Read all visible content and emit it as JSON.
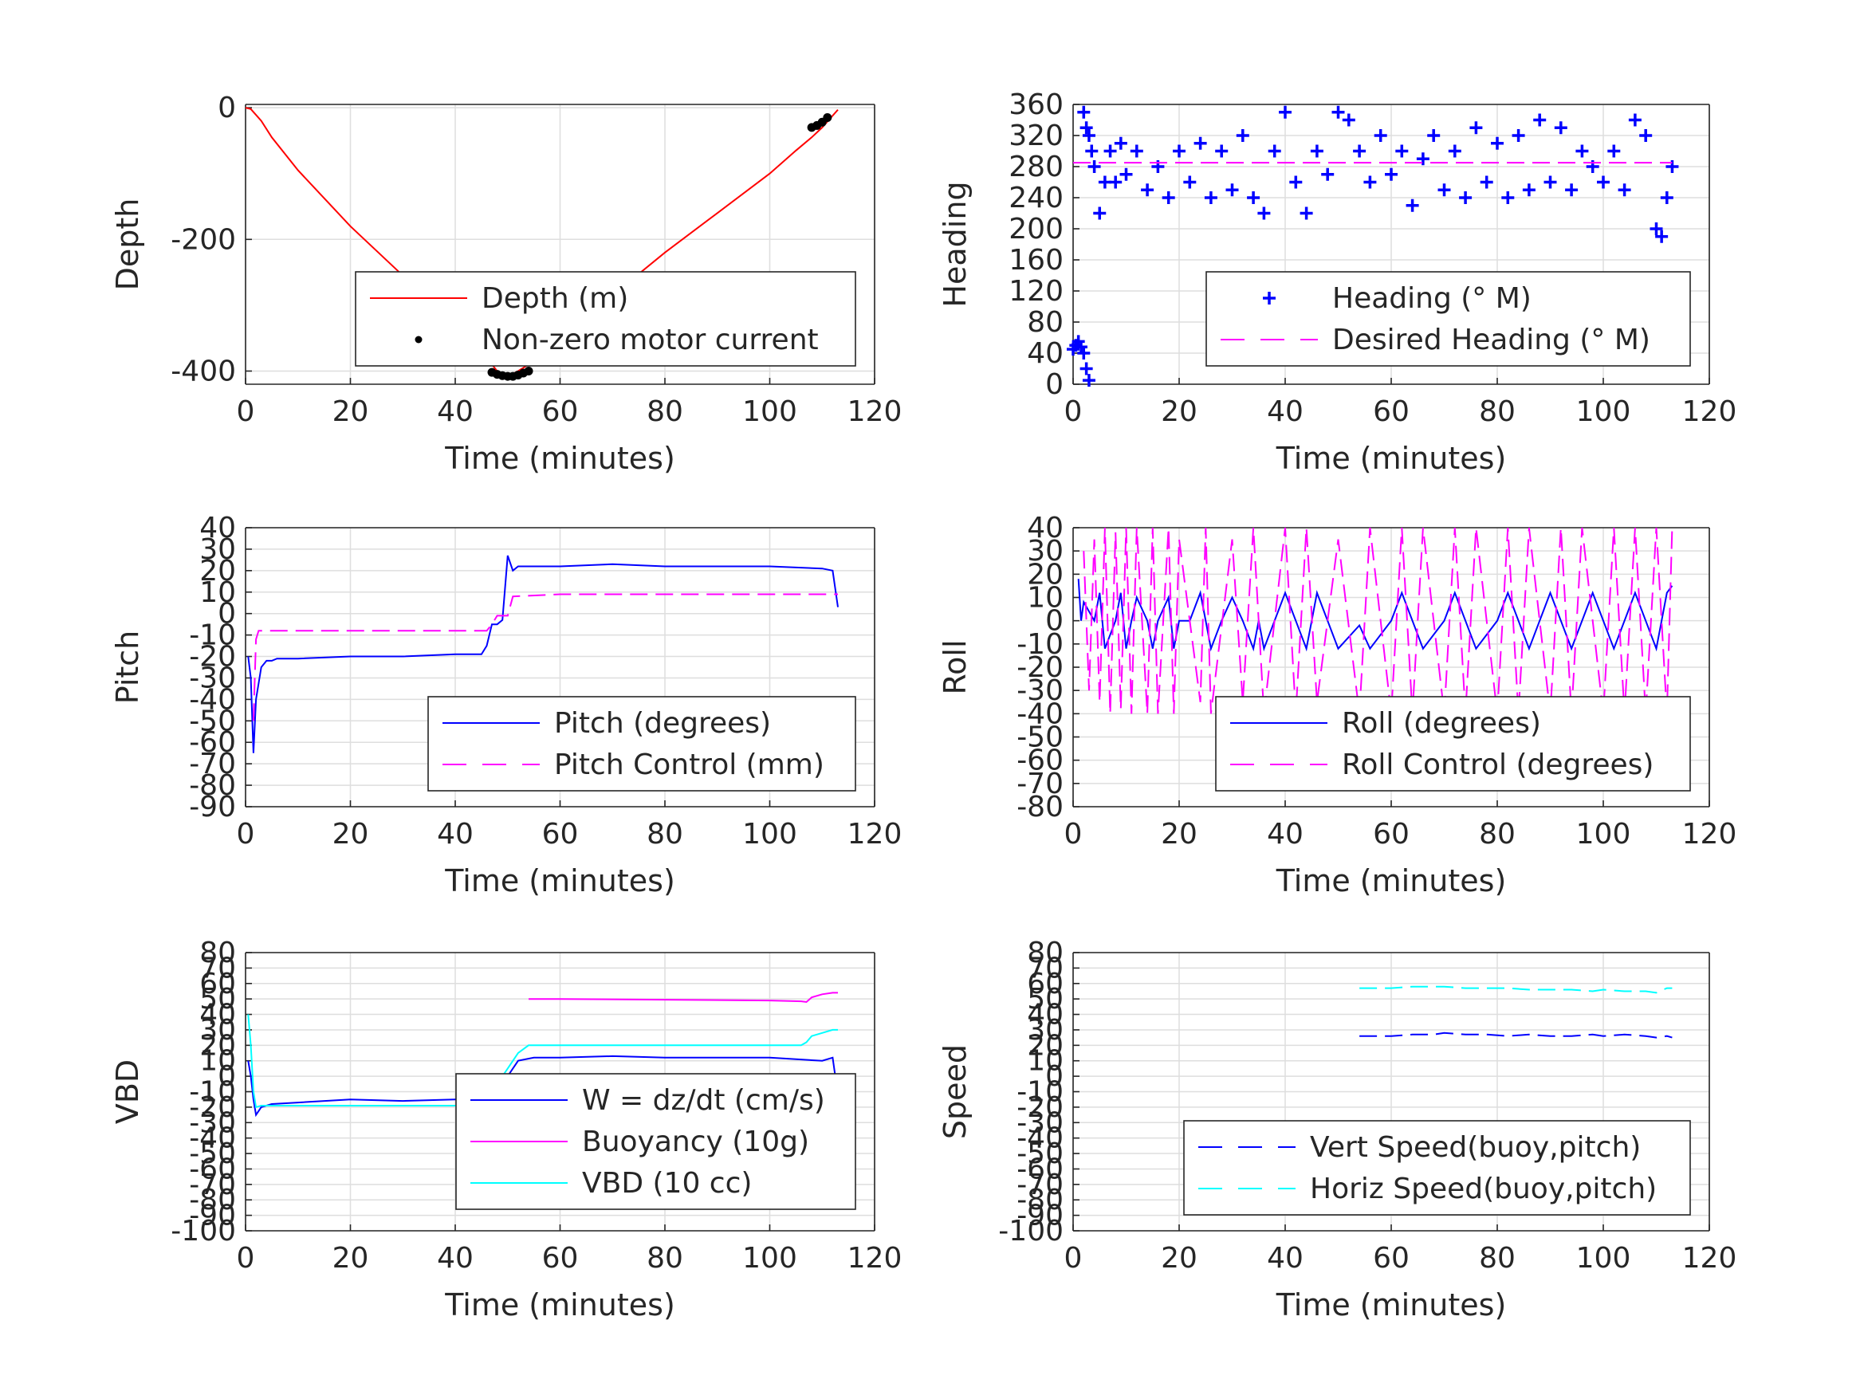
{
  "chart_data": [
    {
      "type": "line",
      "xlabel": "Time (minutes)",
      "ylabel": "Depth",
      "xlim": [
        0,
        120
      ],
      "ylim": [
        -420,
        5
      ],
      "xticks": [
        "0",
        "20",
        "40",
        "60",
        "80",
        "100",
        "120"
      ],
      "yticks": [
        "-400",
        "-200",
        "0"
      ],
      "grid": true,
      "legend": "bottom-right",
      "series": [
        {
          "name": "Depth (m)",
          "style": "line",
          "color": "#ff0000",
          "x": [
            0,
            1,
            3,
            5,
            10,
            20,
            30,
            40,
            45,
            48,
            50,
            52,
            55,
            60,
            70,
            80,
            90,
            100,
            105,
            108,
            110,
            113
          ],
          "y": [
            0,
            -2,
            -20,
            -45,
            -95,
            -180,
            -255,
            -330,
            -370,
            -400,
            -408,
            -400,
            -385,
            -350,
            -285,
            -220,
            -160,
            -100,
            -65,
            -45,
            -30,
            -3
          ]
        },
        {
          "name": "Non-zero motor current",
          "style": "dots",
          "color": "#000000",
          "x": [
            47,
            48,
            49,
            50,
            51,
            52,
            53,
            54,
            108,
            109,
            110,
            111
          ],
          "y": [
            -402,
            -405,
            -407,
            -408,
            -408,
            -406,
            -403,
            -400,
            -30,
            -27,
            -22,
            -15
          ]
        }
      ]
    },
    {
      "type": "scatter",
      "xlabel": "Time (minutes)",
      "ylabel": "Heading",
      "xlim": [
        0,
        120
      ],
      "ylim": [
        0,
        360
      ],
      "xticks": [
        "0",
        "20",
        "40",
        "60",
        "80",
        "100",
        "120"
      ],
      "yticks": [
        "0",
        "40",
        "80",
        "120",
        "160",
        "200",
        "240",
        "280",
        "320",
        "360"
      ],
      "grid": true,
      "legend": "bottom-right",
      "series": [
        {
          "name": "Heading (° M)",
          "style": "plus",
          "color": "#0000ff",
          "x": [
            0,
            0.5,
            1,
            1.5,
            2,
            2.5,
            3,
            2,
            2.5,
            3,
            3.5,
            4,
            5,
            6,
            7,
            8,
            9,
            10,
            12,
            14,
            16,
            18,
            20,
            22,
            24,
            26,
            28,
            30,
            32,
            34,
            36,
            38,
            40,
            42,
            44,
            46,
            48,
            50,
            52,
            54,
            56,
            58,
            60,
            62,
            64,
            66,
            68,
            70,
            72,
            74,
            76,
            78,
            80,
            82,
            84,
            86,
            88,
            90,
            92,
            94,
            96,
            98,
            100,
            102,
            104,
            106,
            108,
            110,
            111,
            112,
            113
          ],
          "y": [
            45,
            50,
            55,
            48,
            40,
            20,
            5,
            350,
            330,
            320,
            300,
            280,
            220,
            260,
            300,
            260,
            310,
            270,
            300,
            250,
            280,
            240,
            300,
            260,
            310,
            240,
            300,
            250,
            320,
            240,
            220,
            300,
            350,
            260,
            220,
            300,
            270,
            350,
            340,
            300,
            260,
            320,
            270,
            300,
            230,
            290,
            320,
            250,
            300,
            240,
            330,
            260,
            310,
            240,
            320,
            250,
            340,
            260,
            330,
            250,
            300,
            280,
            260,
            300,
            250,
            340,
            320,
            200,
            190,
            240,
            280
          ]
        },
        {
          "name": "Desired Heading (° M)",
          "style": "dash",
          "color": "#ff00ff",
          "x": [
            0,
            113
          ],
          "y": [
            285,
            285
          ]
        }
      ]
    },
    {
      "type": "line",
      "xlabel": "Time (minutes)",
      "ylabel": "Pitch",
      "xlim": [
        0,
        120
      ],
      "ylim": [
        -90,
        40
      ],
      "xticks": [
        "0",
        "20",
        "40",
        "60",
        "80",
        "100",
        "120"
      ],
      "yticks": [
        "-90",
        "-80",
        "-70",
        "-60",
        "-50",
        "-40",
        "-30",
        "-20",
        "-10",
        "0",
        "10",
        "20",
        "30",
        "40"
      ],
      "grid": true,
      "legend": "bottom-right",
      "series": [
        {
          "name": "Pitch (degrees)",
          "style": "line",
          "color": "#0000ff",
          "x": [
            0.5,
            1,
            1.5,
            2,
            3,
            4,
            5,
            6,
            10,
            20,
            30,
            40,
            45,
            46,
            47,
            48,
            49,
            50,
            51,
            52,
            60,
            70,
            80,
            90,
            100,
            110,
            112,
            113
          ],
          "y": [
            -20,
            -30,
            -65,
            -40,
            -25,
            -22,
            -22,
            -21,
            -21,
            -20,
            -20,
            -19,
            -19,
            -15,
            -5,
            -5,
            -3,
            27,
            20,
            22,
            22,
            23,
            22,
            22,
            22,
            21,
            20,
            3
          ]
        },
        {
          "name": "Pitch Control (mm)",
          "style": "dash",
          "color": "#ff00ff",
          "x": [
            1.5,
            2,
            2.5,
            5,
            20,
            40,
            46,
            47,
            48,
            49,
            50,
            51,
            60,
            80,
            100,
            113
          ],
          "y": [
            -50,
            -12,
            -8,
            -8,
            -8,
            -8,
            -8,
            -5,
            -1,
            -1,
            -1,
            8,
            9,
            9,
            9,
            9
          ]
        }
      ]
    },
    {
      "type": "line",
      "xlabel": "Time (minutes)",
      "ylabel": "Roll",
      "xlim": [
        0,
        120
      ],
      "ylim": [
        -80,
        40
      ],
      "xticks": [
        "0",
        "20",
        "40",
        "60",
        "80",
        "100",
        "120"
      ],
      "yticks": [
        "-80",
        "-70",
        "-60",
        "-50",
        "-40",
        "-30",
        "-20",
        "-10",
        "0",
        "10",
        "20",
        "30",
        "40"
      ],
      "grid": true,
      "legend": "bottom-right",
      "series": [
        {
          "name": "Roll (degrees)",
          "style": "line",
          "color": "#0000ff",
          "x": [
            1,
            1.5,
            2,
            4,
            5,
            6,
            8,
            9,
            10,
            11,
            12,
            14,
            15,
            16,
            18,
            19,
            20,
            22,
            24,
            25,
            26,
            28,
            30,
            32,
            34,
            35,
            36,
            38,
            40,
            42,
            44,
            45,
            46,
            48,
            50,
            54,
            56,
            60,
            62,
            64,
            66,
            70,
            72,
            74,
            76,
            80,
            82,
            84,
            86,
            88,
            90,
            92,
            94,
            96,
            98,
            100,
            102,
            104,
            106,
            108,
            110,
            112,
            113
          ],
          "y": [
            18,
            0,
            8,
            0,
            12,
            -12,
            0,
            12,
            -12,
            0,
            10,
            0,
            -12,
            0,
            10,
            -12,
            0,
            0,
            12,
            0,
            -12,
            0,
            10,
            0,
            -12,
            0,
            -12,
            0,
            12,
            0,
            -12,
            0,
            12,
            0,
            -12,
            -2,
            -12,
            0,
            12,
            0,
            -12,
            0,
            12,
            0,
            -12,
            0,
            12,
            0,
            -12,
            0,
            12,
            0,
            -12,
            0,
            12,
            0,
            -12,
            0,
            12,
            0,
            -12,
            12,
            15
          ]
        },
        {
          "name": "Roll Control (degrees)",
          "style": "dash",
          "color": "#ff00ff",
          "x": [
            2,
            3,
            4,
            5,
            6,
            7,
            8,
            9,
            10,
            11,
            12,
            14,
            15,
            16,
            18,
            19,
            20,
            24,
            25,
            26,
            30,
            32,
            34,
            36,
            40,
            42,
            44,
            46,
            50,
            54,
            56,
            60,
            62,
            64,
            66,
            70,
            72,
            74,
            76,
            80,
            82,
            84,
            86,
            90,
            92,
            94,
            96,
            100,
            102,
            104,
            106,
            108,
            110,
            112,
            113
          ],
          "y": [
            30,
            -30,
            35,
            -35,
            40,
            -40,
            38,
            -38,
            40,
            -40,
            40,
            -40,
            40,
            -40,
            40,
            -40,
            35,
            -35,
            40,
            -40,
            35,
            -35,
            40,
            -40,
            40,
            -40,
            40,
            -35,
            35,
            -40,
            40,
            -40,
            40,
            -40,
            40,
            -40,
            40,
            -40,
            40,
            -40,
            40,
            -40,
            40,
            -40,
            40,
            -40,
            40,
            -40,
            40,
            -40,
            40,
            -40,
            40,
            -40,
            40
          ]
        }
      ]
    },
    {
      "type": "line",
      "xlabel": "Time (minutes)",
      "ylabel": "VBD",
      "xlim": [
        0,
        120
      ],
      "ylim": [
        -100,
        80
      ],
      "xticks": [
        "0",
        "20",
        "40",
        "60",
        "80",
        "100",
        "120"
      ],
      "yticks": [
        "-100",
        "-90",
        "-80",
        "-70",
        "-60",
        "-50",
        "-40",
        "-30",
        "-20",
        "-10",
        "0",
        "10",
        "20",
        "30",
        "40",
        "50",
        "60",
        "70",
        "80"
      ],
      "grid": true,
      "legend": "bottom-right",
      "series": [
        {
          "name": "W = dz/dt (cm/s)",
          "style": "line",
          "color": "#0000ff",
          "x": [
            0.5,
            1,
            1.5,
            2,
            3,
            5,
            10,
            20,
            30,
            40,
            46,
            47,
            48,
            50,
            52,
            55,
            60,
            70,
            80,
            90,
            100,
            105,
            110,
            112,
            112.5,
            113
          ],
          "y": [
            10,
            0,
            -15,
            -25,
            -20,
            -18,
            -17,
            -15,
            -16,
            -15,
            -15,
            -8,
            -5,
            0,
            10,
            12,
            12,
            13,
            12,
            12,
            12,
            11,
            10,
            12,
            0,
            -15
          ]
        },
        {
          "name": "Buoyancy (10g)",
          "style": "line",
          "color": "#ff00ff",
          "x": [
            54,
            60,
            80,
            100,
            106,
            107,
            108,
            110,
            112,
            113
          ],
          "y": [
            50,
            50,
            49.5,
            49,
            48.5,
            48,
            51,
            53,
            54,
            54
          ]
        },
        {
          "name": "VBD (10 cc)",
          "style": "line",
          "color": "#00ffff",
          "x": [
            0.5,
            1,
            1.5,
            2,
            3,
            5,
            10,
            20,
            30,
            40,
            46,
            47,
            48,
            50,
            52,
            54,
            60,
            80,
            100,
            106,
            107,
            108,
            110,
            112,
            113
          ],
          "y": [
            40,
            20,
            -10,
            -20,
            -19,
            -19,
            -19,
            -19,
            -19,
            -19,
            -19,
            -10,
            -5,
            5,
            15,
            20,
            20,
            20,
            20,
            20,
            22,
            26,
            28,
            30,
            30
          ]
        }
      ]
    },
    {
      "type": "line",
      "xlabel": "Time (minutes)",
      "ylabel": "Speed",
      "xlim": [
        0,
        120
      ],
      "ylim": [
        -100,
        80
      ],
      "xticks": [
        "0",
        "20",
        "40",
        "60",
        "80",
        "100",
        "120"
      ],
      "yticks": [
        "-100",
        "-90",
        "-80",
        "-70",
        "-60",
        "-50",
        "-40",
        "-30",
        "-20",
        "-10",
        "0",
        "10",
        "20",
        "30",
        "40",
        "50",
        "60",
        "70",
        "80"
      ],
      "grid": true,
      "legend": "bottom-right",
      "series": [
        {
          "name": "Vert Speed(buoy,pitch)",
          "style": "dash",
          "color": "#0000ff",
          "x": [
            54,
            56,
            60,
            64,
            68,
            70,
            74,
            78,
            82,
            86,
            90,
            94,
            98,
            100,
            104,
            108,
            110,
            112,
            113
          ],
          "y": [
            26,
            26,
            26,
            27,
            27,
            28,
            27,
            27,
            26,
            27,
            26,
            26,
            27,
            26,
            27,
            26,
            25,
            26,
            25
          ]
        },
        {
          "name": "Horiz Speed(buoy,pitch)",
          "style": "dash",
          "color": "#00ffff",
          "x": [
            54,
            56,
            60,
            64,
            68,
            70,
            74,
            78,
            82,
            86,
            90,
            94,
            98,
            100,
            104,
            108,
            110,
            112,
            113
          ],
          "y": [
            57,
            57,
            57,
            58,
            58,
            58,
            57,
            57,
            57,
            56,
            56,
            56,
            55,
            56,
            55,
            55,
            54,
            57,
            57
          ]
        }
      ]
    }
  ]
}
